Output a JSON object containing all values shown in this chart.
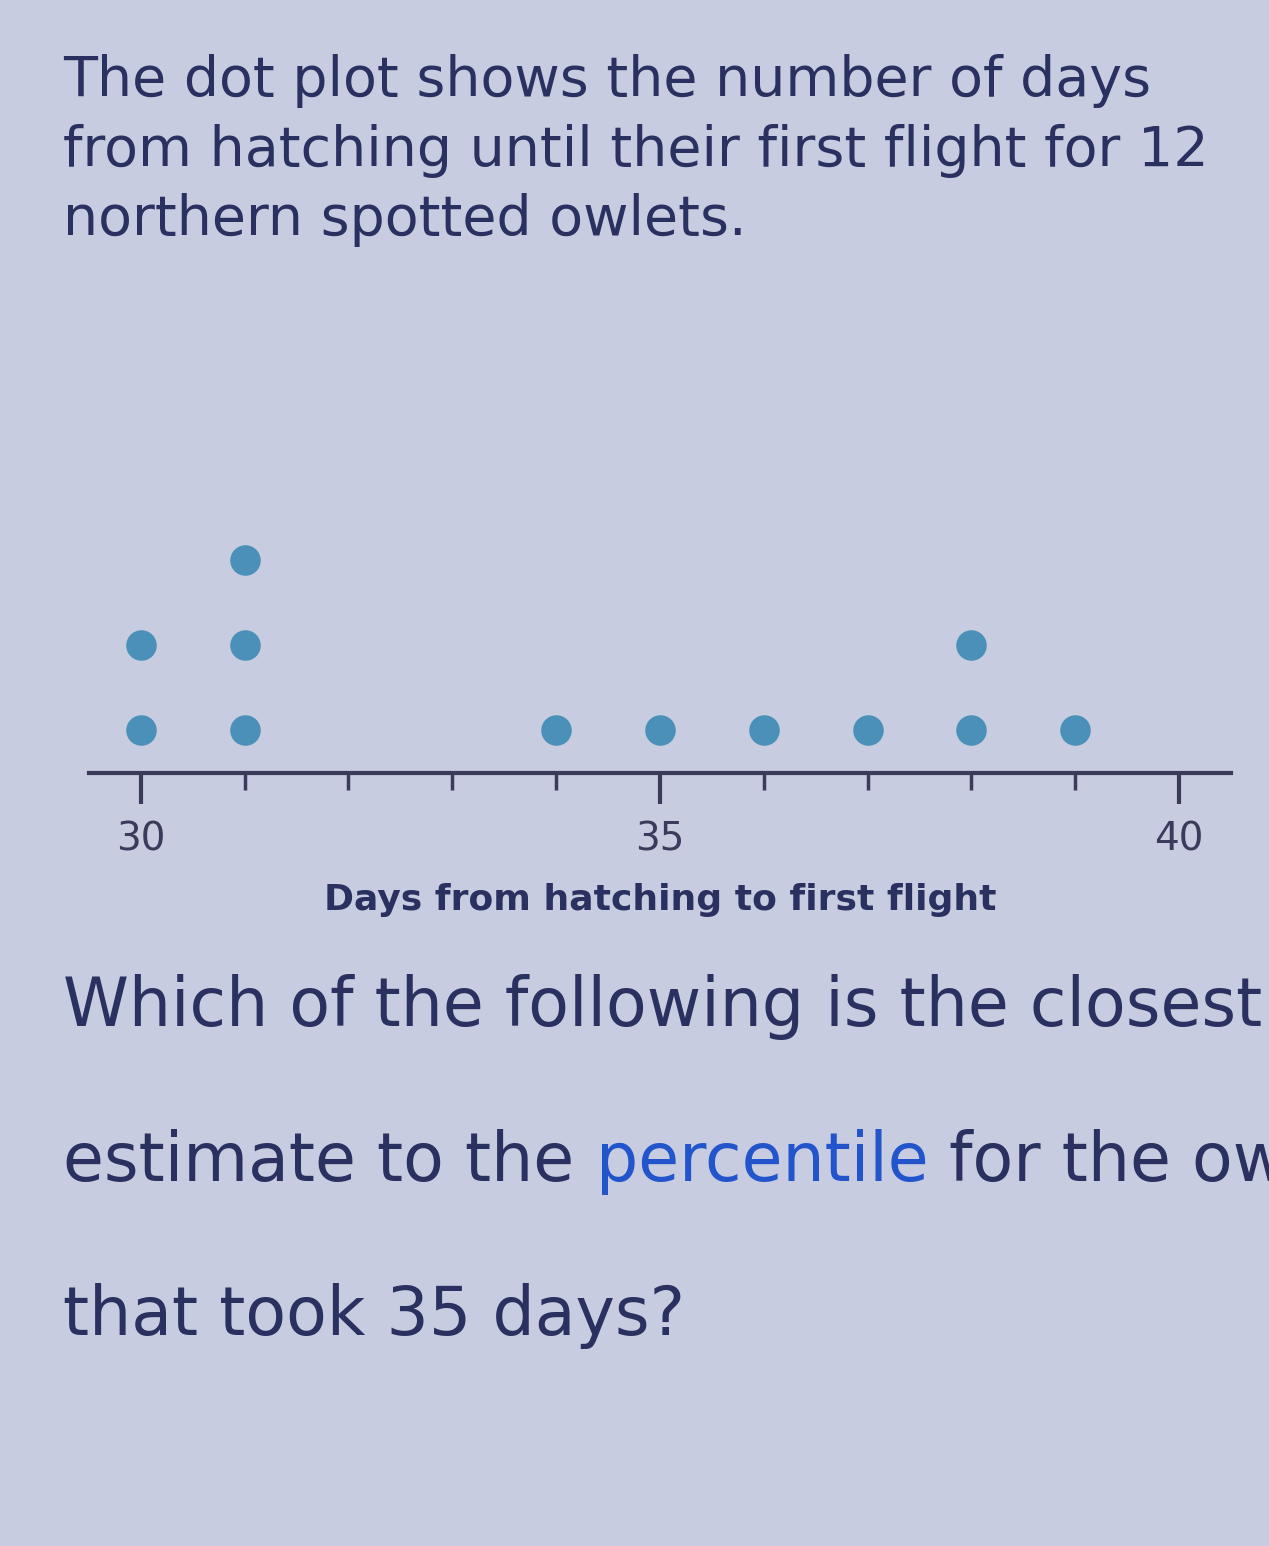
{
  "title_line1": "The dot plot shows the number of days",
  "title_line2": "from hatching until their first flight for 12",
  "title_line3": "northern spotted owlets.",
  "xlabel": "Days from hatching to first flight",
  "question_line1": "Which of the following is the closest",
  "question_line2_before": "estimate to the ",
  "question_highlight": "percentile",
  "question_line2_after": " for the owlet",
  "question_line3": "that took 35 days?",
  "dot_data": {
    "30": 2,
    "31": 3,
    "34": 1,
    "35": 1,
    "36": 1,
    "37": 1,
    "38": 2,
    "39": 1
  },
  "x_min": 29.5,
  "x_max": 40.5,
  "x_ticks": [
    30,
    35,
    40
  ],
  "dot_color": "#4a90b8",
  "dot_size": 22,
  "background_color": "#c8cce0",
  "title_color": "#2a3060",
  "axis_color": "#3a3a5a",
  "xlabel_color": "#2a3060",
  "question_normal_color": "#2a3060",
  "question_highlight_color": "#2255cc",
  "tick_label_fontsize": 28,
  "xlabel_fontsize": 26,
  "title_fontsize": 40,
  "question_fontsize": 48
}
